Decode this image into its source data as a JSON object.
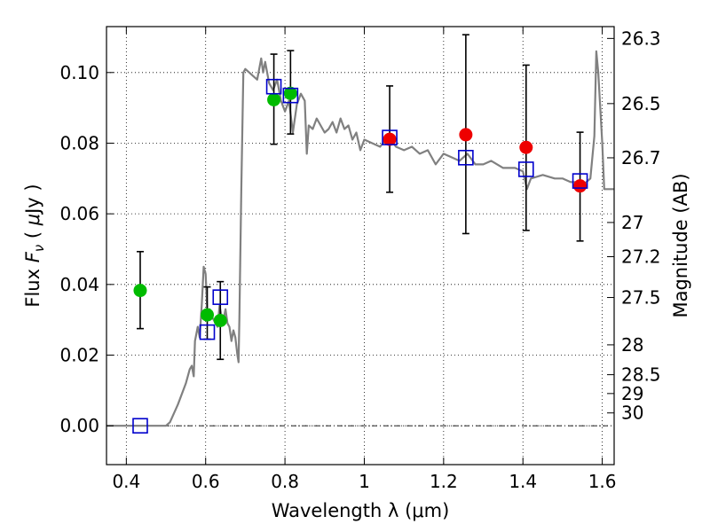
{
  "chart_data": {
    "type": "scatter",
    "xlabel": "Wavelength  λ (μm)",
    "ylabel": "Flux  Fν ( μJy )",
    "ylabel_parts": [
      "Flux  ",
      "F",
      "ν",
      "  ( ",
      "μ",
      "Jy )"
    ],
    "y2label": "Magnitude (AB)",
    "xlim": [
      0.35,
      1.63
    ],
    "ylim": [
      -0.011,
      0.113
    ],
    "grid": true,
    "x_ticks": [
      0.4,
      0.6,
      0.8,
      1.0,
      1.2,
      1.4,
      1.6
    ],
    "x_tick_labels": [
      "0.4",
      "0.6",
      "0.8",
      "1",
      "1.2",
      "1.4",
      "1.6"
    ],
    "y_ticks": [
      0.0,
      0.02,
      0.04,
      0.06,
      0.08,
      0.1
    ],
    "y_tick_labels": [
      "0.00",
      "0.02",
      "0.04",
      "0.06",
      "0.08",
      "0.10"
    ],
    "mag_ticks": [
      26.3,
      26.5,
      26.7,
      27,
      27.2,
      27.5,
      28,
      28.5,
      29,
      30
    ],
    "mag_tick_labels": [
      "26.3",
      "26.5",
      "26.7",
      "27",
      "27.2",
      "27.5",
      "28",
      "28.5",
      "29",
      "30"
    ],
    "colors": {
      "model": "#808080",
      "green": "#00bb00",
      "red": "#ee0000",
      "square": "#0000cc",
      "errorbar": "#000000"
    },
    "series": [
      {
        "name": "model spectrum",
        "kind": "line",
        "x": [
          0.35,
          0.5,
          0.51,
          0.53,
          0.55,
          0.56,
          0.565,
          0.57,
          0.573,
          0.58,
          0.585,
          0.59,
          0.595,
          0.6,
          0.605,
          0.61,
          0.615,
          0.62,
          0.63,
          0.635,
          0.64,
          0.645,
          0.65,
          0.655,
          0.66,
          0.665,
          0.67,
          0.675,
          0.68,
          0.683,
          0.685,
          0.69,
          0.695,
          0.7,
          0.71,
          0.72,
          0.73,
          0.74,
          0.745,
          0.75,
          0.76,
          0.77,
          0.78,
          0.79,
          0.8,
          0.81,
          0.82,
          0.83,
          0.84,
          0.85,
          0.855,
          0.86,
          0.87,
          0.88,
          0.89,
          0.9,
          0.91,
          0.92,
          0.93,
          0.94,
          0.95,
          0.96,
          0.97,
          0.98,
          0.99,
          1.0,
          1.02,
          1.04,
          1.06,
          1.08,
          1.1,
          1.12,
          1.14,
          1.16,
          1.18,
          1.2,
          1.22,
          1.24,
          1.26,
          1.28,
          1.3,
          1.32,
          1.35,
          1.38,
          1.4,
          1.41,
          1.42,
          1.45,
          1.48,
          1.5,
          1.52,
          1.54,
          1.55,
          1.56,
          1.57,
          1.58,
          1.585,
          1.59,
          1.6,
          1.605,
          1.61,
          1.63
        ],
        "y": [
          0.0,
          0.0,
          0.001,
          0.006,
          0.012,
          0.016,
          0.017,
          0.014,
          0.024,
          0.028,
          0.025,
          0.034,
          0.045,
          0.043,
          0.03,
          0.033,
          0.031,
          0.03,
          0.028,
          0.034,
          0.031,
          0.03,
          0.033,
          0.029,
          0.028,
          0.024,
          0.027,
          0.025,
          0.02,
          0.018,
          0.03,
          0.067,
          0.1,
          0.101,
          0.1,
          0.099,
          0.098,
          0.104,
          0.1,
          0.103,
          0.097,
          0.095,
          0.098,
          0.092,
          0.089,
          0.092,
          0.083,
          0.091,
          0.094,
          0.092,
          0.077,
          0.085,
          0.084,
          0.087,
          0.085,
          0.083,
          0.084,
          0.086,
          0.083,
          0.087,
          0.084,
          0.085,
          0.081,
          0.083,
          0.078,
          0.081,
          0.08,
          0.079,
          0.082,
          0.079,
          0.078,
          0.079,
          0.077,
          0.078,
          0.074,
          0.077,
          0.076,
          0.075,
          0.077,
          0.074,
          0.074,
          0.075,
          0.073,
          0.073,
          0.072,
          0.067,
          0.07,
          0.071,
          0.07,
          0.07,
          0.069,
          0.069,
          0.068,
          0.069,
          0.07,
          0.082,
          0.106,
          0.1,
          0.08,
          0.067,
          0.067,
          0.067
        ]
      },
      {
        "name": "green detections",
        "kind": "circle",
        "x": [
          0.435,
          0.604,
          0.637,
          0.772,
          0.814
        ],
        "y": [
          0.0383,
          0.0314,
          0.0298,
          0.0923,
          0.0941
        ],
        "err_low": [
          0.0275,
          0.0245,
          0.0188,
          0.0797,
          0.0826
        ],
        "err_high": [
          0.0493,
          0.0393,
          0.0408,
          0.1052,
          0.1062
        ]
      },
      {
        "name": "red detections",
        "kind": "circle",
        "x": [
          1.064,
          1.256,
          1.408,
          1.544
        ],
        "y": [
          0.0811,
          0.0824,
          0.0788,
          0.0679
        ],
        "err_low": [
          0.0661,
          0.0544,
          0.0553,
          0.0523
        ],
        "err_high": [
          0.0962,
          0.1107,
          0.1021,
          0.0831
        ]
      },
      {
        "name": "model photometry",
        "kind": "square",
        "x": [
          0.435,
          0.604,
          0.637,
          0.772,
          0.814,
          1.064,
          1.256,
          1.408,
          1.544
        ],
        "y": [
          0.0,
          0.0265,
          0.0364,
          0.096,
          0.0935,
          0.0816,
          0.0759,
          0.0726,
          0.0693
        ]
      }
    ]
  }
}
